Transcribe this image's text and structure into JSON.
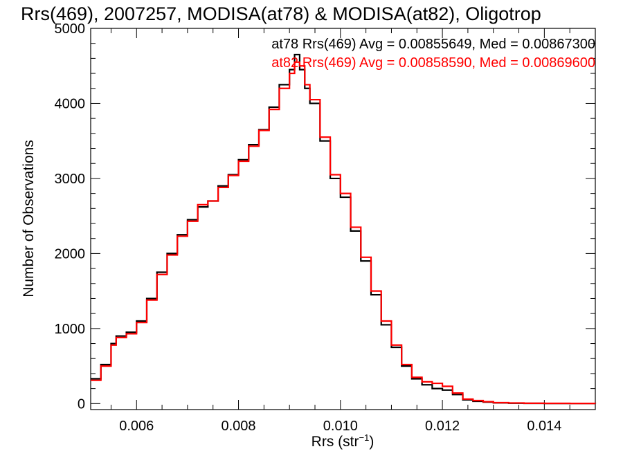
{
  "chart_data": {
    "type": "line",
    "title": "Rrs(469), 2007257, MODISA(at78) & MODISA(at82), Oligotrop",
    "xlabel_main": "Rrs (str",
    "xlabel_sup": "−1",
    "xlabel_end": ")",
    "ylabel": "Number of Observations",
    "xlim": [
      0.0051,
      0.015
    ],
    "ylim": [
      -80,
      5000
    ],
    "xticks": [
      0.006,
      0.008,
      0.01,
      0.012,
      0.014
    ],
    "xtick_labels": [
      "0.006",
      "0.008",
      "0.010",
      "0.012",
      "0.014"
    ],
    "yticks": [
      0,
      1000,
      2000,
      3000,
      4000,
      5000
    ],
    "ytick_labels": [
      "0",
      "1000",
      "2000",
      "3000",
      "4000",
      "5000"
    ],
    "grid": false,
    "legend_placement": "top-right",
    "series": [
      {
        "legend": "at78 Rrs(469) Avg = 0.00855649, Med = 0.00867300",
        "color": "#000000",
        "x": [
          0.0051,
          0.0053,
          0.0055,
          0.0056,
          0.0058,
          0.006,
          0.0062,
          0.0064,
          0.0066,
          0.0068,
          0.007,
          0.0072,
          0.0074,
          0.0076,
          0.0078,
          0.008,
          0.0082,
          0.0084,
          0.0086,
          0.0088,
          0.009,
          0.0091,
          0.0092,
          0.0093,
          0.0094,
          0.0096,
          0.0098,
          0.01,
          0.0102,
          0.0104,
          0.0106,
          0.0108,
          0.011,
          0.0112,
          0.0114,
          0.0116,
          0.0118,
          0.012,
          0.0122,
          0.0124,
          0.0126,
          0.0128,
          0.013,
          0.0133,
          0.0136,
          0.014,
          0.0145,
          0.015
        ],
        "y": [
          330,
          520,
          800,
          900,
          950,
          1100,
          1400,
          1750,
          2000,
          2250,
          2450,
          2620,
          2700,
          2900,
          3050,
          3250,
          3450,
          3650,
          3950,
          4250,
          4450,
          4650,
          4450,
          4200,
          4000,
          3500,
          3000,
          2750,
          2300,
          1900,
          1450,
          1050,
          750,
          500,
          330,
          250,
          200,
          180,
          120,
          50,
          30,
          20,
          10,
          5,
          3,
          2,
          1,
          0
        ]
      },
      {
        "legend": "at82 Rrs(469) Avg = 0.00858590, Med = 0.00869600",
        "color": "#ff0000",
        "x": [
          0.0051,
          0.0053,
          0.0055,
          0.0056,
          0.0058,
          0.006,
          0.0062,
          0.0064,
          0.0066,
          0.0068,
          0.007,
          0.0072,
          0.0074,
          0.0076,
          0.0078,
          0.008,
          0.0082,
          0.0084,
          0.0086,
          0.0088,
          0.009,
          0.0091,
          0.0092,
          0.0093,
          0.0094,
          0.0096,
          0.0098,
          0.01,
          0.0102,
          0.0104,
          0.0106,
          0.0108,
          0.011,
          0.0112,
          0.0114,
          0.0116,
          0.0118,
          0.012,
          0.0122,
          0.0124,
          0.0126,
          0.0128,
          0.013,
          0.0133,
          0.0136,
          0.014,
          0.0145,
          0.015
        ],
        "y": [
          310,
          500,
          780,
          880,
          930,
          1080,
          1380,
          1720,
          1980,
          2230,
          2430,
          2650,
          2700,
          2880,
          3040,
          3230,
          3430,
          3640,
          3920,
          4200,
          4400,
          4550,
          4500,
          4250,
          4050,
          3550,
          3050,
          2800,
          2350,
          1950,
          1500,
          1100,
          780,
          520,
          350,
          290,
          270,
          230,
          140,
          60,
          40,
          25,
          12,
          8,
          4,
          3,
          2,
          1
        ]
      }
    ]
  }
}
